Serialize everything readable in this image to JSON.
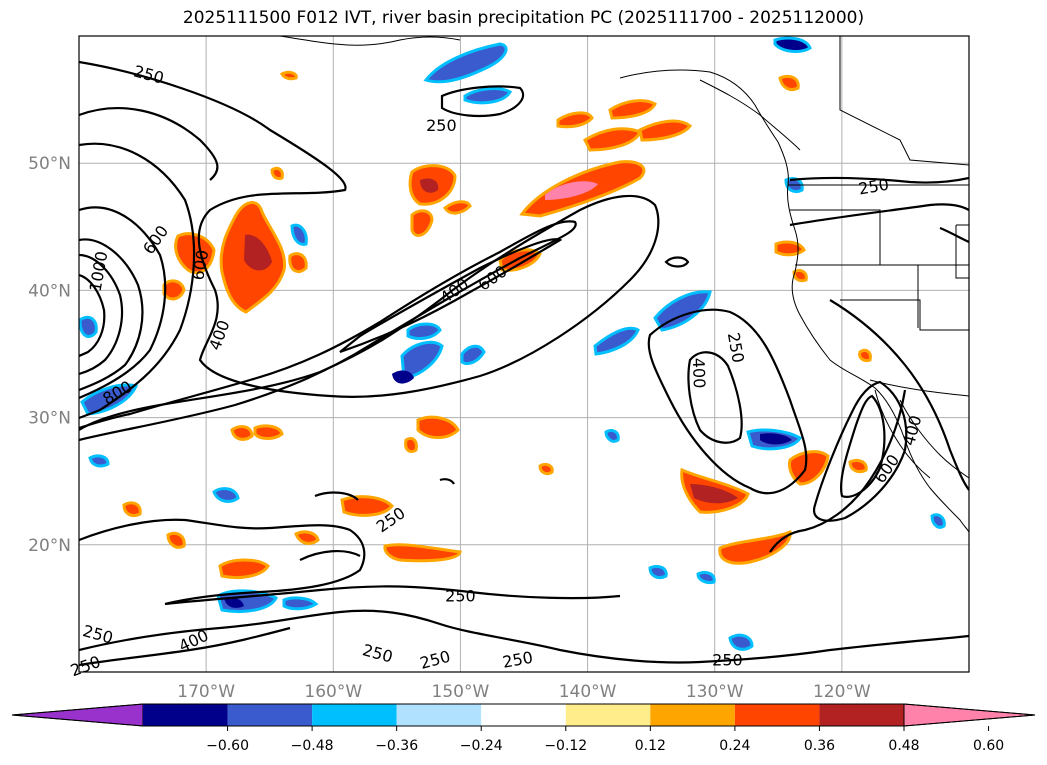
{
  "title": "2025111500 F012 IVT, river basin precipitation PC (2025111700 - 2025112000)",
  "chart_data": {
    "type": "map",
    "projection": "plate-carree",
    "extent": {
      "lon": [
        -180,
        -110
      ],
      "lat": [
        10,
        60
      ]
    },
    "lat_ticks": [
      {
        "value": 20,
        "label": "20°N"
      },
      {
        "value": 30,
        "label": "30°N"
      },
      {
        "value": 40,
        "label": "40°N"
      },
      {
        "value": 50,
        "label": "50°N"
      }
    ],
    "lon_ticks": [
      {
        "value": -170,
        "label": "170°W"
      },
      {
        "value": -160,
        "label": "160°W"
      },
      {
        "value": -150,
        "label": "150°W"
      },
      {
        "value": -140,
        "label": "140°W"
      },
      {
        "value": -130,
        "label": "130°W"
      },
      {
        "value": -120,
        "label": "120°W"
      }
    ],
    "ivt_contour_levels": [
      250,
      400,
      600,
      800,
      1000
    ],
    "contour_labels": [
      {
        "text": "250",
        "lon": -174.5,
        "lat": 57.0,
        "rot": 15
      },
      {
        "text": "250",
        "lon": -151.5,
        "lat": 53.0,
        "rot": 0
      },
      {
        "text": "250",
        "lon": -117.5,
        "lat": 48.2,
        "rot": -10
      },
      {
        "text": "600",
        "lon": -174.0,
        "lat": 44.0,
        "rot": -55
      },
      {
        "text": "1000",
        "lon": -178.5,
        "lat": 41.5,
        "rot": -80
      },
      {
        "text": "600",
        "lon": -170.5,
        "lat": 42.0,
        "rot": -80
      },
      {
        "text": "400",
        "lon": -169.0,
        "lat": 36.5,
        "rot": -70
      },
      {
        "text": "800",
        "lon": -177.0,
        "lat": 32.0,
        "rot": -30
      },
      {
        "text": "400",
        "lon": -150.5,
        "lat": 40.0,
        "rot": -35
      },
      {
        "text": "600",
        "lon": -147.5,
        "lat": 41.0,
        "rot": -35
      },
      {
        "text": "250",
        "lon": -128.3,
        "lat": 35.5,
        "rot": 80
      },
      {
        "text": "400",
        "lon": -131.2,
        "lat": 33.5,
        "rot": 88
      },
      {
        "text": "600",
        "lon": -116.5,
        "lat": 26.0,
        "rot": -55
      },
      {
        "text": "400",
        "lon": -114.5,
        "lat": 29.0,
        "rot": -75
      },
      {
        "text": "250",
        "lon": -155.5,
        "lat": 22.0,
        "rot": -35
      },
      {
        "text": "250",
        "lon": -150.0,
        "lat": 16.0,
        "rot": 0
      },
      {
        "text": "250",
        "lon": -178.5,
        "lat": 13.0,
        "rot": 15
      },
      {
        "text": "400",
        "lon": -171.0,
        "lat": 12.5,
        "rot": -25
      },
      {
        "text": "250",
        "lon": -179.5,
        "lat": 10.5,
        "rot": -20
      },
      {
        "text": "250",
        "lon": -156.5,
        "lat": 11.5,
        "rot": 15
      },
      {
        "text": "250",
        "lon": -152.0,
        "lat": 11.0,
        "rot": -15
      },
      {
        "text": "250",
        "lon": -145.5,
        "lat": 11.0,
        "rot": -10
      },
      {
        "text": "250",
        "lon": -129.0,
        "lat": 11.0,
        "rot": 0
      }
    ],
    "colorbar": {
      "tick_labels": [
        "−0.60",
        "−0.48",
        "−0.36",
        "−0.24",
        "−0.12",
        "0.12",
        "0.24",
        "0.36",
        "0.48",
        "0.60"
      ],
      "colors": [
        "#9932cc",
        "#00008b",
        "#3a5bcd",
        "#00bfff",
        "#b0e2ff",
        "#ffffff",
        "#ffec8b",
        "#ffa500",
        "#ff4500",
        "#b22222",
        "#ff82ab"
      ]
    }
  }
}
